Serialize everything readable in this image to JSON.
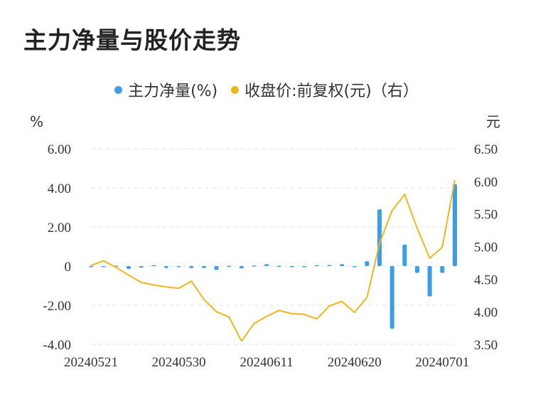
{
  "chart_data": {
    "type": "bar+line",
    "title": "主力净量与股价走势",
    "legend": [
      {
        "name": "主力净量(%)",
        "color": "#3a9ee8"
      },
      {
        "name": "收盘价:前复权(元)（右）",
        "color": "#f2b61c"
      }
    ],
    "left_axis": {
      "unit": "%",
      "ylim": [
        -4,
        6
      ],
      "ticks": [
        "6.00",
        "4.00",
        "2.00",
        "0",
        "-2.00",
        "-4.00"
      ],
      "tick_values": [
        6,
        4,
        2,
        0,
        -2,
        -4
      ]
    },
    "right_axis": {
      "unit": "元",
      "ylim": [
        3.5,
        6.5
      ],
      "ticks": [
        "6.50",
        "6.00",
        "5.50",
        "5.00",
        "4.50",
        "4.00",
        "3.50"
      ],
      "tick_values": [
        6.5,
        6.0,
        5.5,
        5.0,
        4.5,
        4.0,
        3.5
      ]
    },
    "x_tick_labels": [
      "20240521",
      "20240530",
      "20240611",
      "20240620",
      "20240701"
    ],
    "dates": [
      "20240521",
      "20240522",
      "20240523",
      "20240524",
      "20240527",
      "20240528",
      "20240529",
      "20240530",
      "20240531",
      "20240603",
      "20240604",
      "20240605",
      "20240606",
      "20240607",
      "20240611",
      "20240612",
      "20240613",
      "20240614",
      "20240617",
      "20240618",
      "20240619",
      "20240620",
      "20240621",
      "20240624",
      "20240625",
      "20240626",
      "20240627",
      "20240628",
      "20240701",
      "20240702"
    ],
    "series": [
      {
        "name": "主力净量(%)",
        "kind": "bar",
        "values": [
          -0.05,
          -0.03,
          0.02,
          -0.15,
          -0.08,
          0.05,
          -0.1,
          -0.05,
          -0.1,
          -0.1,
          -0.2,
          0.02,
          -0.12,
          0.03,
          0.1,
          0.02,
          -0.05,
          -0.05,
          0.05,
          0.06,
          0.1,
          -0.05,
          0.25,
          2.9,
          -3.2,
          1.1,
          -0.35,
          -1.55,
          -0.35,
          4.2
        ]
      },
      {
        "name": "收盘价:前复权(元)",
        "kind": "line",
        "values": [
          4.71,
          4.78,
          4.68,
          4.56,
          4.45,
          4.41,
          4.38,
          4.36,
          4.47,
          4.19,
          4.0,
          3.92,
          3.55,
          3.82,
          3.93,
          4.02,
          3.97,
          3.96,
          3.89,
          4.09,
          4.16,
          3.99,
          4.22,
          5.05,
          5.55,
          5.8,
          5.28,
          4.82,
          4.99,
          6.02
        ]
      }
    ]
  }
}
